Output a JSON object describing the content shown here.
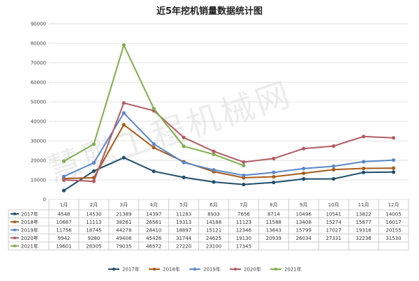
{
  "chart_data": {
    "type": "line",
    "title": "近5年挖机销量数据统计图",
    "categories": [
      "1月",
      "2月",
      "3月",
      "4月",
      "5月",
      "6月",
      "7月",
      "8月",
      "9月",
      "10月",
      "11月",
      "12月"
    ],
    "y_ticks": [
      "0",
      "10000",
      "20000",
      "30000",
      "40000",
      "50000",
      "60000",
      "70000",
      "80000",
      "90000"
    ],
    "ylim": [
      0,
      90000
    ],
    "grid": "on",
    "legend_position": "bottom",
    "series": [
      {
        "name": "2017年",
        "color": "#1f4e6b",
        "values": [
          4548,
          14530,
          21389,
          14397,
          11283,
          8933,
          7656,
          8714,
          10496,
          10541,
          13822,
          14005
        ]
      },
      {
        "name": "2018年",
        "color": "#a65c1a",
        "values": [
          10687,
          11113,
          38261,
          26561,
          19313,
          14188,
          11123,
          11588,
          13408,
          15274,
          15877,
          16017
        ]
      },
      {
        "name": "2019年",
        "color": "#5a88c8",
        "values": [
          11756,
          18745,
          44278,
          28410,
          18897,
          15121,
          12346,
          13843,
          15799,
          17027,
          19316,
          20155
        ]
      },
      {
        "name": "2020年",
        "color": "#b35b63",
        "values": [
          9942,
          9280,
          49408,
          45426,
          31744,
          24625,
          19130,
          20939,
          26034,
          27331,
          32236,
          31530
        ]
      },
      {
        "name": "2021年",
        "color": "#7fad4c",
        "values": [
          19601,
          28305,
          79035,
          46572,
          27220,
          23100,
          17345,
          null,
          null,
          null,
          null,
          null
        ]
      }
    ]
  },
  "watermark": "慧聪工程机械网"
}
